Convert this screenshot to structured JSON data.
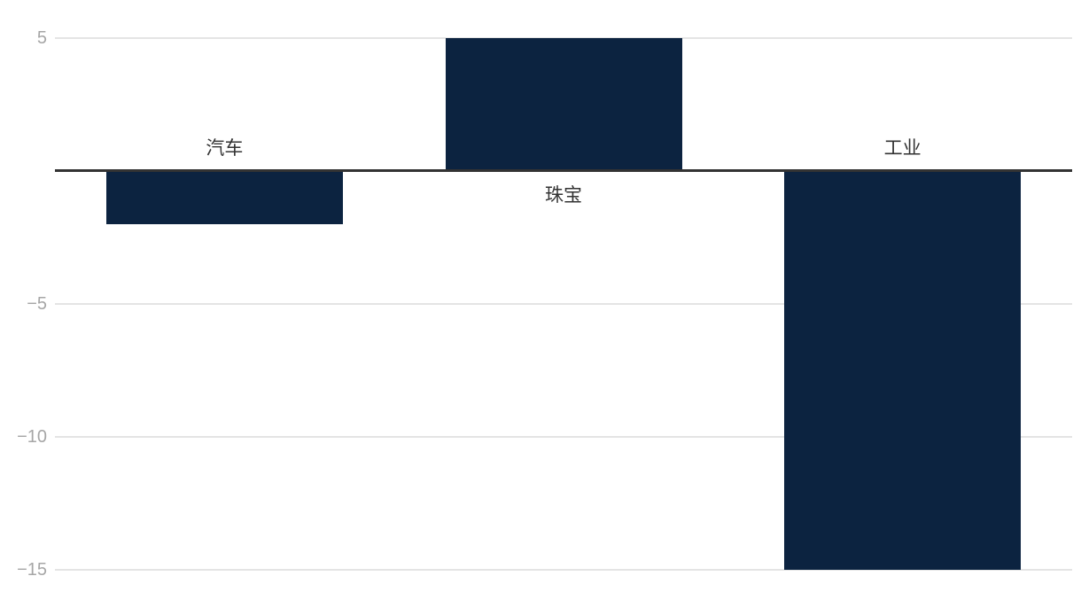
{
  "chart_data": {
    "type": "bar",
    "categories": [
      "汽车",
      "珠宝",
      "工业"
    ],
    "values": [
      -2,
      5,
      -15
    ],
    "title": "",
    "xlabel": "",
    "ylabel": "",
    "ylim": [
      -16.7,
      6.4
    ],
    "yticks": [
      5,
      -5,
      -10,
      -15
    ],
    "ytick_labels": [
      "5",
      "−5",
      "−10",
      "−15"
    ],
    "zero_baseline": 0,
    "grid": "horizontal-on",
    "legend": "none",
    "label_placement": "category labels sit opposite bar direction: above axis for negative bars, below axis for positive bars",
    "colors": {
      "bar": "#0c2340",
      "zero_line": "#333333",
      "gridline": "#e4e4e4",
      "tick_label": "#a6a6a6",
      "category_label": "#333333",
      "background": "#ffffff"
    }
  }
}
